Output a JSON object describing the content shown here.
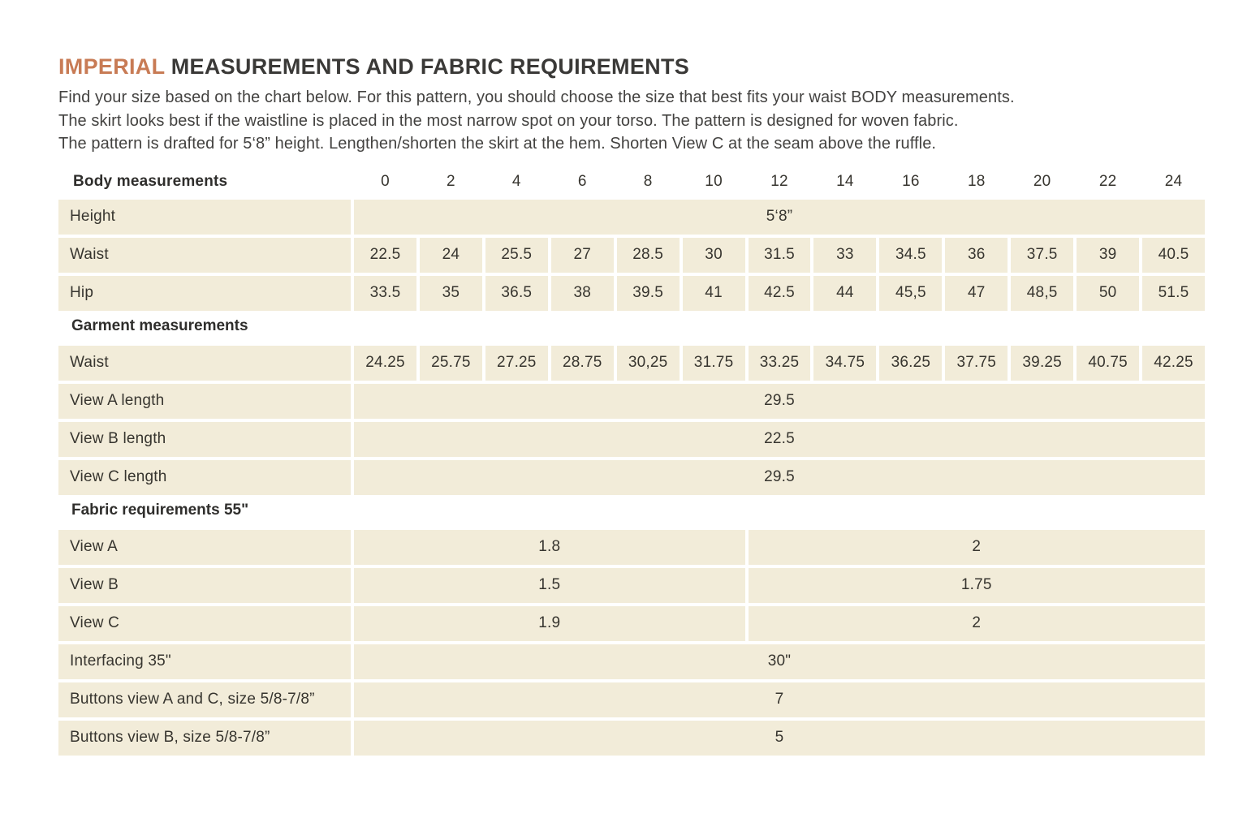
{
  "colors": {
    "accent": "#c87b55",
    "cell_background": "#f2ecd9",
    "page_background": "#ffffff",
    "text": "#37352f"
  },
  "page": {
    "title_highlight": "IMPERIAL",
    "title_rest": " MEASUREMENTS AND FABRIC REQUIREMENTS",
    "intro_lines": [
      "Find your size based on the chart below. For this pattern, you should choose the size that best fits your waist BODY measurements.",
      "The skirt looks best if the waistline is placed in the most narrow spot on your torso. The pattern is designed for woven fabric.",
      "The pattern is drafted for 5‘8” height. Lengthen/shorten the skirt at the hem. Shorten View C at the seam above the ruffle."
    ]
  },
  "table": {
    "header_label": "Body measurements",
    "sizes": [
      "0",
      "2",
      "4",
      "6",
      "8",
      "10",
      "12",
      "14",
      "16",
      "18",
      "20",
      "22",
      "24"
    ],
    "rows": [
      {
        "label": "Height",
        "cells": [
          {
            "value": "5‘8”",
            "span": 13
          }
        ]
      },
      {
        "label": "Waist",
        "cells": [
          {
            "value": "22.5"
          },
          {
            "value": "24"
          },
          {
            "value": "25.5"
          },
          {
            "value": "27"
          },
          {
            "value": "28.5"
          },
          {
            "value": "30"
          },
          {
            "value": "31.5"
          },
          {
            "value": "33"
          },
          {
            "value": "34.5"
          },
          {
            "value": "36"
          },
          {
            "value": "37.5"
          },
          {
            "value": "39"
          },
          {
            "value": "40.5"
          }
        ]
      },
      {
        "label": "Hip",
        "cells": [
          {
            "value": "33.5"
          },
          {
            "value": "35"
          },
          {
            "value": "36.5"
          },
          {
            "value": "38"
          },
          {
            "value": "39.5"
          },
          {
            "value": "41"
          },
          {
            "value": "42.5"
          },
          {
            "value": "44"
          },
          {
            "value": "45,5"
          },
          {
            "value": "47"
          },
          {
            "value": "48,5"
          },
          {
            "value": "50"
          },
          {
            "value": "51.5"
          }
        ]
      },
      {
        "section": "Garment measurements"
      },
      {
        "label": "Waist",
        "cells": [
          {
            "value": "24.25"
          },
          {
            "value": "25.75"
          },
          {
            "value": "27.25"
          },
          {
            "value": "28.75"
          },
          {
            "value": "30,25"
          },
          {
            "value": "31.75"
          },
          {
            "value": "33.25"
          },
          {
            "value": "34.75"
          },
          {
            "value": "36.25"
          },
          {
            "value": "37.75"
          },
          {
            "value": "39.25"
          },
          {
            "value": "40.75"
          },
          {
            "value": "42.25"
          }
        ]
      },
      {
        "label": "View A length",
        "cells": [
          {
            "value": "29.5",
            "span": 13
          }
        ]
      },
      {
        "label": "View B length",
        "cells": [
          {
            "value": "22.5",
            "span": 13
          }
        ]
      },
      {
        "label": "View C length",
        "cells": [
          {
            "value": "29.5",
            "span": 13
          }
        ]
      },
      {
        "section": "Fabric requirements 55\""
      },
      {
        "label": "View A",
        "cells": [
          {
            "value": "1.8",
            "span": 6
          },
          {
            "value": "2",
            "span": 7
          }
        ]
      },
      {
        "label": "View B",
        "cells": [
          {
            "value": "1.5",
            "span": 6
          },
          {
            "value": "1.75",
            "span": 7
          }
        ]
      },
      {
        "label": "View C",
        "cells": [
          {
            "value": "1.9",
            "span": 6
          },
          {
            "value": "2",
            "span": 7
          }
        ]
      },
      {
        "label": "Interfacing 35\"",
        "cells": [
          {
            "value": "30\"",
            "span": 13
          }
        ]
      },
      {
        "label": "Buttons view A and C, size 5/8-7/8”",
        "cells": [
          {
            "value": "7",
            "span": 13
          }
        ]
      },
      {
        "label": "Buttons view B, size 5/8-7/8”",
        "cells": [
          {
            "value": "5",
            "span": 13
          }
        ]
      }
    ]
  }
}
